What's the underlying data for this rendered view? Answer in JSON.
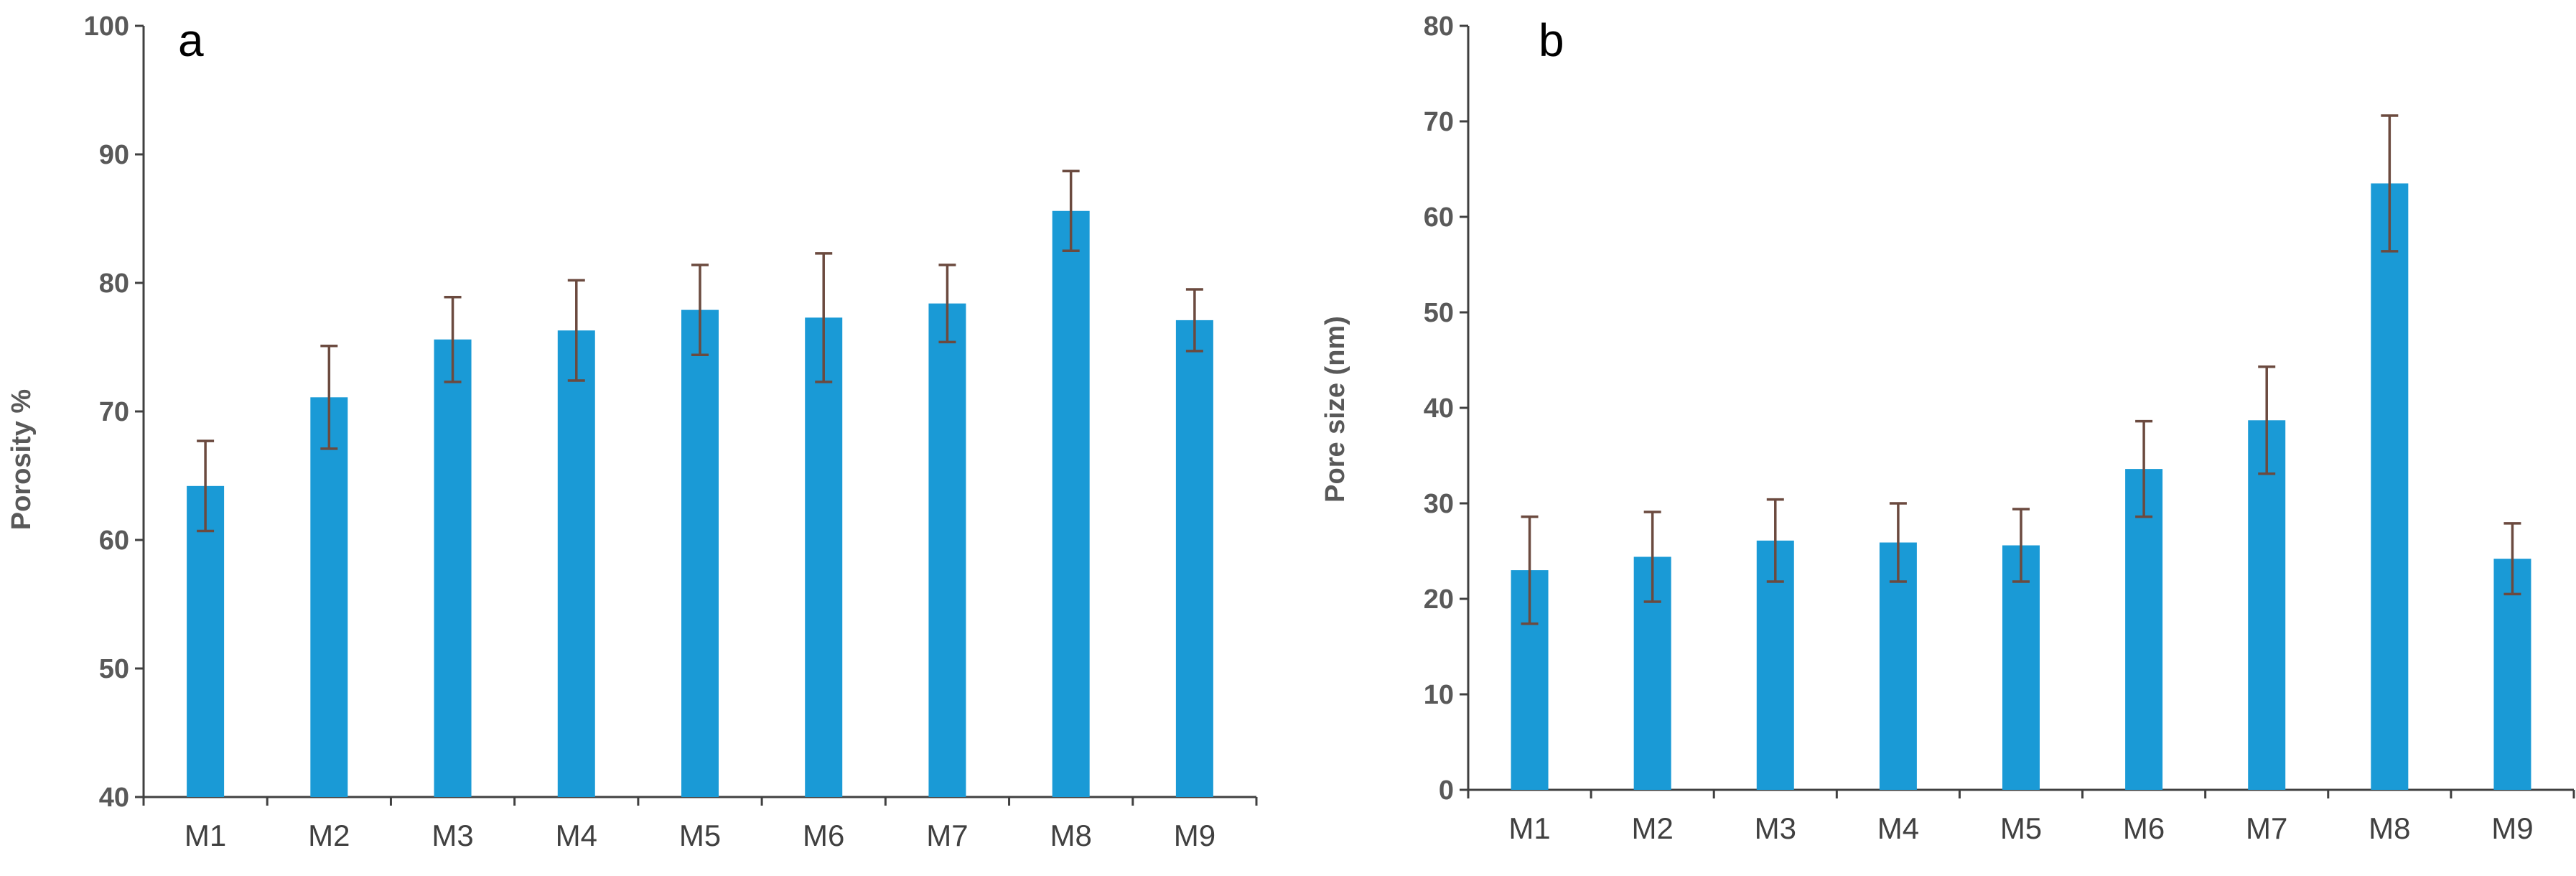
{
  "chart_data": [
    {
      "type": "bar",
      "panel_label": "a",
      "title": "",
      "xlabel": "",
      "ylabel": "Porosity %",
      "ylim": [
        40,
        100
      ],
      "yticks": [
        40,
        50,
        60,
        70,
        80,
        90,
        100
      ],
      "categories": [
        "M1",
        "M2",
        "M3",
        "M4",
        "M5",
        "M6",
        "M7",
        "M8",
        "M9"
      ],
      "values": [
        64.2,
        71.1,
        75.6,
        76.3,
        77.9,
        77.3,
        78.4,
        85.6,
        77.1
      ],
      "error": [
        3.5,
        4.0,
        3.3,
        3.9,
        3.5,
        5.0,
        3.0,
        3.1,
        2.4
      ],
      "color": "#1a9ad6"
    },
    {
      "type": "bar",
      "panel_label": "b",
      "title": "",
      "xlabel": "",
      "ylabel": "Pore size (nm)",
      "ylim": [
        0,
        80
      ],
      "yticks": [
        0,
        10,
        20,
        30,
        40,
        50,
        60,
        70,
        80
      ],
      "categories": [
        "M1",
        "M2",
        "M3",
        "M4",
        "M5",
        "M6",
        "M7",
        "M8",
        "M9"
      ],
      "values": [
        23.0,
        24.4,
        26.1,
        25.9,
        25.6,
        33.6,
        38.7,
        63.5,
        24.2
      ],
      "error": [
        5.6,
        4.7,
        4.3,
        4.1,
        3.8,
        5.0,
        5.6,
        7.1,
        3.7
      ],
      "color": "#1a9ad6"
    }
  ]
}
